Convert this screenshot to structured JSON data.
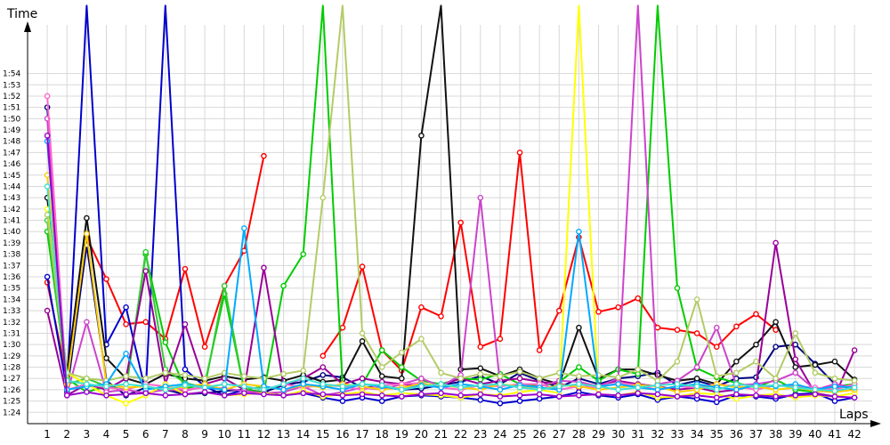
{
  "chart_data": {
    "type": "line",
    "title": "",
    "xlabel": "Laps",
    "ylabel": "Time",
    "x": [
      1,
      2,
      3,
      4,
      5,
      6,
      7,
      8,
      9,
      10,
      11,
      12,
      13,
      14,
      15,
      16,
      17,
      18,
      19,
      20,
      21,
      22,
      23,
      24,
      25,
      26,
      27,
      28,
      29,
      30,
      31,
      32,
      33,
      34,
      35,
      36,
      37,
      38,
      39,
      40,
      41,
      42
    ],
    "x_tick_labels": [
      "1",
      "2",
      "3",
      "4",
      "5",
      "6",
      "7",
      "8",
      "9",
      "10",
      "11",
      "12",
      "13",
      "14",
      "15",
      "16",
      "17",
      "18",
      "19",
      "20",
      "21",
      "22",
      "23",
      "24",
      "25",
      "26",
      "27",
      "28",
      "29",
      "30",
      "31",
      "32",
      "33",
      "34",
      "35",
      "36",
      "37",
      "38",
      "39",
      "40",
      "41",
      "42"
    ],
    "y_tick_labels": [
      "1:24",
      "1:25",
      "1:26",
      "1:27",
      "1:28",
      "1:29",
      "1:30",
      "1:31",
      "1:32",
      "1:33",
      "1:34",
      "1:35",
      "1:36",
      "1:37",
      "1:38",
      "1:39",
      "1:40",
      "1:41",
      "1:42",
      "1:43",
      "1:44",
      "1:45",
      "1:46",
      "1:47",
      "1:48",
      "1:49",
      "1:50",
      "1:51",
      "1:52",
      "1:53",
      "1:54"
    ],
    "y_tick_values": [
      84,
      85,
      86,
      87,
      88,
      89,
      90,
      91,
      92,
      93,
      94,
      95,
      96,
      97,
      98,
      99,
      100,
      101,
      102,
      103,
      104,
      105,
      106,
      107,
      108,
      109,
      110,
      111,
      112,
      113,
      114
    ],
    "xlim": [
      0,
      42.9
    ],
    "ylim": [
      83,
      118.3
    ],
    "y_unit": "seconds",
    "grid": true,
    "series": [
      {
        "color": "#ff0000",
        "values": [
          95.5,
          87.0,
          99.5,
          95.8,
          91.8,
          92.0,
          90.5,
          96.7,
          89.8,
          95.2,
          98.3,
          106.7,
          null,
          null,
          89.0,
          91.5,
          96.9,
          89.5,
          87.7,
          93.3,
          92.5,
          100.8,
          89.8,
          90.5,
          107.0,
          89.5,
          93.0,
          99.5,
          92.9,
          93.3,
          94.1,
          91.5,
          91.3,
          91.0,
          89.8,
          91.6,
          92.7,
          91.3,
          null,
          null,
          null,
          null
        ]
      },
      {
        "color": "#0000cc",
        "values": [
          96.0,
          86.0,
          120.0,
          90.0,
          93.3,
          85.8,
          120.0,
          87.8,
          86.3,
          85.5,
          86.0,
          85.8,
          85.5,
          85.7,
          85.3,
          85.0,
          85.3,
          85.0,
          85.4,
          85.5,
          85.4,
          85.3,
          85.1,
          84.8,
          85.0,
          85.2,
          85.4,
          85.8,
          85.5,
          85.3,
          85.6,
          85.1,
          85.4,
          85.2,
          84.9,
          85.5,
          85.4,
          85.2,
          85.6,
          85.7,
          85.0,
          85.3
        ]
      },
      {
        "color": "#000080",
        "values": [
          111.0,
          85.8,
          98.8,
          86.8,
          85.5,
          86.2,
          86.0,
          85.6,
          85.7,
          85.9,
          86.0,
          85.8,
          86.4,
          86.7,
          87.3,
          87.1,
          86.2,
          86.3,
          86.0,
          86.1,
          86.4,
          86.7,
          87.2,
          86.5,
          87.5,
          86.8,
          86.2,
          87.0,
          86.5,
          87.0,
          87.2,
          87.5,
          86.4,
          86.8,
          86.3,
          87.0,
          87.1,
          89.8,
          90.0,
          88.3,
          86.5,
          86.0
        ]
      },
      {
        "color": "#111111",
        "values": [
          103.0,
          87.5,
          101.2,
          88.8,
          87.0,
          86.5,
          87.4,
          87.0,
          86.8,
          87.2,
          86.9,
          87.1,
          86.8,
          87.3,
          86.7,
          86.9,
          90.3,
          87.2,
          87.0,
          108.5,
          120.0,
          87.8,
          87.9,
          87.2,
          87.8,
          87.0,
          86.5,
          91.5,
          87.0,
          87.8,
          87.8,
          87.3,
          86.8,
          87.0,
          86.5,
          88.5,
          90.0,
          92.0,
          88.0,
          88.2,
          88.5,
          86.9
        ]
      },
      {
        "color": "#00cc00",
        "values": [
          100.0,
          87.0,
          85.8,
          86.3,
          86.0,
          98.0,
          90.2,
          86.1,
          86.5,
          94.5,
          86.0,
          85.8,
          95.2,
          98.0,
          120.0,
          86.3,
          86.5,
          89.5,
          88.0,
          86.8,
          86.5,
          87.0,
          86.9,
          87.4,
          86.5,
          86.3,
          86.7,
          88.0,
          86.8,
          87.8,
          87.4,
          120.0,
          95.0,
          87.9,
          87.1,
          86.6,
          86.2,
          86.9,
          86.0,
          85.8,
          86.3,
          86.5
        ]
      },
      {
        "color": "#33cc33",
        "values": [
          101.0,
          86.5,
          87.0,
          86.3,
          86.0,
          98.2,
          87.8,
          86.6,
          86.2,
          95.2,
          86.0,
          86.3,
          null,
          null,
          null,
          null,
          null,
          null,
          null,
          null,
          null,
          null,
          null,
          null,
          null,
          null,
          null,
          null,
          null,
          null,
          null,
          null,
          null,
          null,
          null,
          null,
          null,
          null,
          null,
          null,
          null,
          null
        ]
      },
      {
        "color": "#990099",
        "values": [
          93.0,
          85.5,
          86.5,
          86.0,
          87.0,
          96.5,
          86.5,
          91.8,
          86.5,
          87.0,
          86.0,
          96.8,
          86.4,
          87.0,
          88.0,
          86.5,
          87.0,
          86.7,
          86.5,
          86.3,
          86.4,
          87.0,
          86.5,
          86.8,
          87.0,
          86.7,
          86.5,
          86.2,
          86.4,
          86.8,
          86.5,
          86.3,
          86.0,
          86.2,
          85.8,
          86.0,
          86.4,
          99.0,
          88.7,
          85.7,
          85.4,
          89.5
        ]
      },
      {
        "color": "#cc44cc",
        "values": [
          110.0,
          85.6,
          92.0,
          85.8,
          86.0,
          85.7,
          86.0,
          85.9,
          86.3,
          86.1,
          85.9,
          85.7,
          85.8,
          86.3,
          85.5,
          85.8,
          86.2,
          86.0,
          86.5,
          87.0,
          86.3,
          87.3,
          103.0,
          86.5,
          86.2,
          86.3,
          86.8,
          86.7,
          86.3,
          87.0,
          120.0,
          86.5,
          86.8,
          88.0,
          91.5,
          86.4,
          86.5,
          86.8,
          87.5,
          86.0,
          86.5,
          86.2
        ]
      },
      {
        "color": "#ff66cc",
        "values": [
          112.0,
          86.0,
          86.5,
          86.2,
          86.0,
          86.5,
          86.3,
          86.0,
          86.2,
          86.5,
          86.3,
          86.0,
          86.5,
          86.2,
          86.4,
          86.3,
          86.0,
          86.4,
          86.5,
          86.6,
          86.2,
          86.0,
          86.4,
          86.3,
          86.5,
          86.5,
          86.0,
          86.3,
          86.2,
          86.6,
          86.4,
          86.0,
          86.3,
          86.2,
          86.5,
          86.3,
          86.0,
          86.4,
          86.3,
          86.2,
          86.0,
          86.5
        ]
      },
      {
        "color": "#ffff00",
        "values": [
          102.0,
          87.5,
          86.5,
          85.5,
          84.8,
          85.5,
          86.5,
          85.6,
          85.8,
          85.5,
          85.6,
          85.7,
          85.5,
          85.9,
          85.4,
          85.6,
          85.8,
          85.5,
          85.7,
          85.6,
          85.5,
          85.3,
          85.6,
          85.5,
          85.8,
          86.0,
          85.7,
          120.0,
          85.6,
          85.5,
          85.8,
          85.3,
          85.4,
          85.7,
          85.6,
          85.2,
          85.5,
          85.6,
          85.3,
          85.5,
          85.4,
          85.7
        ]
      },
      {
        "color": "#ffcc00",
        "values": [
          105.0,
          86.5,
          99.8,
          86.5,
          86.2,
          86.3,
          86.0,
          86.3,
          86.5,
          86.0,
          86.5,
          86.3,
          86.0,
          86.4,
          86.2,
          86.5,
          86.3,
          86.0,
          86.2,
          86.5,
          86.4,
          86.2,
          86.0,
          86.5,
          86.3,
          86.0,
          86.4,
          86.3,
          86.0,
          86.2,
          86.4,
          86.3,
          85.8,
          86.0,
          86.5,
          86.2,
          86.3,
          86.0,
          86.2,
          85.9,
          85.8,
          86.0
        ]
      },
      {
        "color": "#b3cc66",
        "values": [
          101.5,
          87.5,
          87.0,
          86.8,
          87.2,
          87.0,
          87.5,
          87.3,
          87.0,
          87.5,
          87.2,
          87.0,
          87.4,
          87.7,
          103.0,
          120.0,
          91.0,
          88.0,
          89.3,
          90.5,
          87.5,
          87.0,
          87.4,
          87.2,
          87.6,
          87.0,
          87.5,
          87.2,
          87.3,
          87.1,
          87.8,
          86.8,
          88.5,
          94.0,
          87.2,
          87.5,
          88.5,
          87.0,
          91.0,
          87.5,
          87.0,
          86.8
        ]
      },
      {
        "color": "#00aaff",
        "values": [
          108.0,
          86.0,
          86.3,
          86.5,
          89.2,
          86.0,
          86.3,
          86.5,
          86.2,
          86.0,
          100.3,
          86.3,
          86.0,
          86.5,
          86.3,
          86.0,
          86.5,
          86.3,
          86.0,
          86.4,
          86.2,
          86.5,
          86.3,
          86.0,
          86.4,
          86.2,
          86.0,
          100.0,
          86.3,
          86.5,
          86.2,
          86.0,
          86.3,
          86.5,
          86.2,
          86.0,
          86.4,
          86.3,
          86.5,
          86.0,
          86.3,
          86.2
        ]
      },
      {
        "color": "#40e0d0",
        "values": [
          104.0,
          86.8,
          86.5,
          86.3,
          86.5,
          86.3,
          86.0,
          86.4,
          86.2,
          86.5,
          86.3,
          86.0,
          86.5,
          87.0,
          86.5,
          86.3,
          86.5,
          86.4,
          86.0,
          86.3,
          86.5,
          86.2,
          86.4,
          86.5,
          86.2,
          86.0,
          86.3,
          86.5,
          86.3,
          86.0,
          86.2,
          86.4,
          86.5,
          86.3,
          86.0,
          86.5,
          86.3,
          86.4,
          86.2,
          86.0,
          85.9,
          86.2
        ]
      },
      {
        "color": "#9900cc",
        "values": [
          108.5,
          85.5,
          85.8,
          85.5,
          85.6,
          85.7,
          85.5,
          85.6,
          85.8,
          85.5,
          85.7,
          85.6,
          85.5,
          85.7,
          85.6,
          85.5,
          85.6,
          85.5,
          85.4,
          85.6,
          85.7,
          85.5,
          85.6,
          85.4,
          85.5,
          85.6,
          85.4,
          85.5,
          85.6,
          85.5,
          85.7,
          85.6,
          85.4,
          85.5,
          85.3,
          85.6,
          85.5,
          85.4,
          85.5,
          85.6,
          85.4,
          85.3
        ]
      }
    ]
  }
}
